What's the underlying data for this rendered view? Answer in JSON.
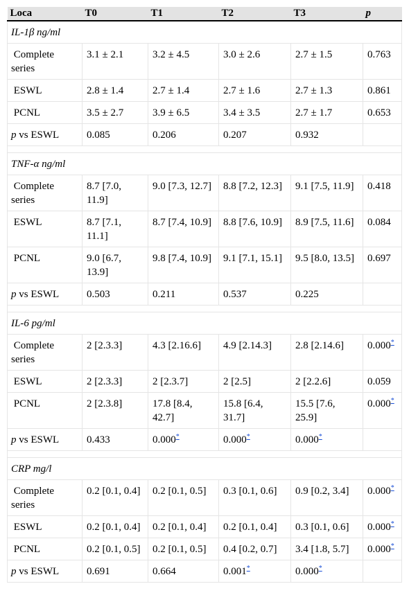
{
  "header": [
    "Loca",
    "T0",
    "T1",
    "T2",
    "T3",
    "p"
  ],
  "sections": [
    {
      "title": "IL-1β ng/ml",
      "rows": [
        {
          "label": "Complete series",
          "cells": [
            "3.1 ± 2.1",
            "3.2 ± 4.5",
            "3.0 ± 2.6",
            "2.7 ± 1.5",
            "0.763"
          ],
          "stars": [
            false,
            false,
            false,
            false,
            false
          ]
        },
        {
          "label": "ESWL",
          "cells": [
            "2.8 ± 1.4",
            "2.7 ± 1.4",
            "2.7 ± 1.6",
            "2.7 ± 1.3",
            "0.861"
          ],
          "stars": [
            false,
            false,
            false,
            false,
            false
          ]
        },
        {
          "label": "PCNL",
          "cells": [
            "3.5 ± 2.7",
            "3.9 ± 6.5",
            "3.4 ± 3.5",
            "2.7 ± 1.7",
            "0.653"
          ],
          "stars": [
            false,
            false,
            false,
            false,
            false
          ]
        },
        {
          "label_italic": "p",
          "label": " vs ESWL",
          "cells": [
            "0.085",
            "0.206",
            "0.207",
            "0.932",
            ""
          ],
          "stars": [
            false,
            false,
            false,
            false,
            false
          ]
        }
      ]
    },
    {
      "title": "TNF-α ng/ml",
      "rows": [
        {
          "label": "Complete series",
          "cells": [
            "8.7 [7.0, 11.9]",
            "9.0 [7.3, 12.7]",
            "8.8 [7.2, 12.3]",
            "9.1 [7.5, 11.9]",
            "0.418"
          ],
          "stars": [
            false,
            false,
            false,
            false,
            false
          ]
        },
        {
          "label": "ESWL",
          "cells": [
            "8.7 [7.1, 11.1]",
            "8.7 [7.4, 10.9]",
            "8.8 [7.6, 10.9]",
            "8.9 [7.5, 11.6]",
            "0.084"
          ],
          "stars": [
            false,
            false,
            false,
            false,
            false
          ]
        },
        {
          "label": "PCNL",
          "cells": [
            "9.0 [6.7, 13.9]",
            "9.8 [7.4, 10.9]",
            "9.1 [7.1, 15.1]",
            "9.5 [8.0, 13.5]",
            "0.697"
          ],
          "stars": [
            false,
            false,
            false,
            false,
            false
          ]
        },
        {
          "label_italic": "p",
          "label": " vs ESWL",
          "cells": [
            "0.503",
            "0.211",
            "0.537",
            "0.225",
            ""
          ],
          "stars": [
            false,
            false,
            false,
            false,
            false
          ]
        }
      ]
    },
    {
      "title": "IL-6 pg/ml",
      "rows": [
        {
          "label": "Complete series",
          "cells": [
            "2 [2.3.3]",
            "4.3 [2.16.6]",
            "4.9 [2.14.3]",
            "2.8 [2.14.6]",
            "0.000"
          ],
          "stars": [
            false,
            false,
            false,
            false,
            true
          ]
        },
        {
          "label": "ESWL",
          "cells": [
            "2 [2.3.3]",
            "2 [2.3.7]",
            "2 [2.5]",
            "2 [2.2.6]",
            "0.059"
          ],
          "stars": [
            false,
            false,
            false,
            false,
            false
          ]
        },
        {
          "label": "PCNL",
          "cells": [
            "2 [2.3.8]",
            "17.8 [8.4, 42.7]",
            "15.8 [6.4, 31.7]",
            "15.5 [7.6, 25.9]",
            "0.000"
          ],
          "stars": [
            false,
            false,
            false,
            false,
            true
          ]
        },
        {
          "label_italic": "p",
          "label": " vs ESWL",
          "cells": [
            "0.433",
            "0.000",
            "0.000",
            "0.000",
            ""
          ],
          "stars": [
            false,
            true,
            true,
            true,
            false
          ]
        }
      ]
    },
    {
      "title": "CRP mg/l",
      "rows": [
        {
          "label": "Complete series",
          "cells": [
            "0.2 [0.1, 0.4]",
            "0.2 [0.1, 0.5]",
            "0.3 [0.1, 0.6]",
            "0.9 [0.2, 3.4]",
            "0.000"
          ],
          "stars": [
            false,
            false,
            false,
            false,
            true
          ]
        },
        {
          "label": "ESWL",
          "cells": [
            "0.2 [0.1, 0.4]",
            "0.2 [0.1, 0.4]",
            "0.2 [0.1, 0.4]",
            "0.3 [0.1, 0.6]",
            "0.000"
          ],
          "stars": [
            false,
            false,
            false,
            false,
            true
          ]
        },
        {
          "label": "PCNL",
          "cells": [
            "0.2 [0.1, 0.5]",
            "0.2 [0.1, 0.5]",
            "0.4 [0.2, 0.7]",
            "3.4 [1.8, 5.7]",
            "0.000"
          ],
          "stars": [
            false,
            false,
            false,
            false,
            true
          ]
        },
        {
          "label_italic": "p",
          "label": " vs ESWL",
          "cells": [
            "0.691",
            "0.664",
            "0.001",
            "0.000",
            ""
          ],
          "stars": [
            false,
            false,
            true,
            true,
            false
          ]
        }
      ]
    }
  ],
  "footnote_marker": "*"
}
